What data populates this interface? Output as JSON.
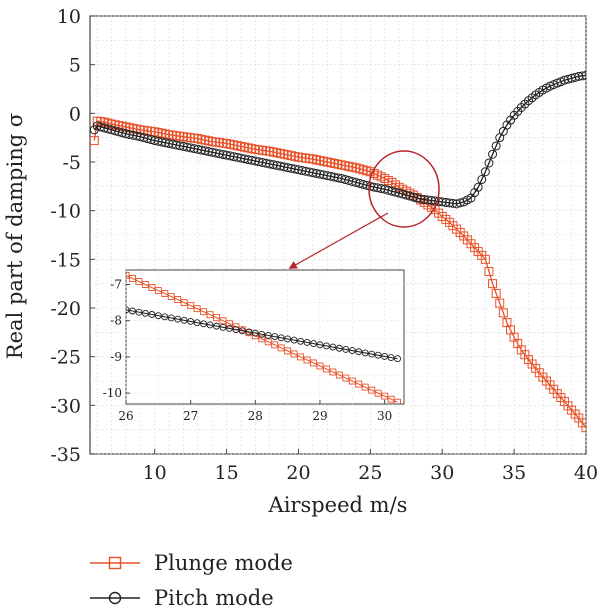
{
  "chart_data": {
    "type": "line",
    "xlabel": "Airspeed m/s",
    "ylabel": "Real part of damping σ",
    "xlim": [
      5.5,
      40
    ],
    "ylim": [
      -35,
      10
    ],
    "xticks": [
      10,
      15,
      20,
      25,
      30,
      35,
      40
    ],
    "yticks": [
      10,
      5,
      0,
      -5,
      -10,
      -15,
      -20,
      -25,
      -30,
      -35
    ],
    "grid": true,
    "legend_position": "bottom-left, below plot",
    "series": [
      {
        "name": "Plunge mode",
        "color": "#e8522a",
        "marker": "square",
        "x": [
          5.8,
          6.0,
          6.5,
          7,
          8,
          9,
          10,
          11,
          12,
          13,
          14,
          15,
          16,
          17,
          18,
          19,
          20,
          21,
          22,
          23,
          24,
          25,
          26,
          26.5,
          27,
          27.5,
          28,
          28.5,
          29,
          29.5,
          30,
          30.5,
          31,
          31.5,
          32,
          32.5,
          33,
          33.5,
          34,
          34.5,
          35,
          35.5,
          36,
          36.5,
          37,
          37.5,
          38,
          38.5,
          39,
          39.5,
          40
        ],
        "y": [
          -2.8,
          -0.8,
          -0.9,
          -1.1,
          -1.4,
          -1.7,
          -1.9,
          -2.2,
          -2.4,
          -2.6,
          -2.9,
          -3.1,
          -3.4,
          -3.7,
          -3.9,
          -4.2,
          -4.5,
          -4.7,
          -5.0,
          -5.3,
          -5.6,
          -6.0,
          -6.7,
          -7.1,
          -7.6,
          -8.0,
          -8.4,
          -8.9,
          -9.4,
          -9.9,
          -10.6,
          -11.2,
          -11.9,
          -12.6,
          -13.4,
          -14.2,
          -15.0,
          -17.5,
          -19.5,
          -21.5,
          -23.0,
          -24.3,
          -25.3,
          -26.2,
          -27.1,
          -27.9,
          -28.8,
          -29.6,
          -30.5,
          -31.3,
          -32.3
        ]
      },
      {
        "name": "Pitch mode",
        "color": "#222222",
        "marker": "circle",
        "x": [
          5.8,
          6.0,
          6.5,
          7,
          8,
          9,
          10,
          11,
          12,
          13,
          14,
          15,
          16,
          17,
          18,
          19,
          20,
          21,
          22,
          23,
          24,
          25,
          26,
          26.5,
          27,
          27.5,
          28,
          28.5,
          29,
          29.5,
          30,
          30.5,
          31,
          31.5,
          32,
          32.5,
          33,
          33.5,
          34,
          34.5,
          35,
          35.5,
          36,
          36.5,
          37,
          37.5,
          38,
          38.5,
          39,
          39.5,
          40
        ],
        "y": [
          -1.7,
          -1.3,
          -1.5,
          -1.7,
          -2.1,
          -2.4,
          -2.8,
          -3.1,
          -3.4,
          -3.7,
          -4.0,
          -4.3,
          -4.6,
          -4.9,
          -5.2,
          -5.5,
          -5.8,
          -6.1,
          -6.4,
          -6.7,
          -7.1,
          -7.5,
          -7.8,
          -8.0,
          -8.2,
          -8.4,
          -8.6,
          -8.8,
          -8.9,
          -9.0,
          -9.1,
          -9.2,
          -9.3,
          -9.1,
          -8.7,
          -7.6,
          -6.0,
          -4.2,
          -2.5,
          -1.2,
          -0.2,
          0.6,
          1.3,
          1.9,
          2.4,
          2.8,
          3.1,
          3.4,
          3.6,
          3.8,
          3.9
        ]
      }
    ],
    "annotations": [
      {
        "type": "ellipse",
        "center": [
          28.5,
          -8.5
        ]
      },
      {
        "type": "arrow",
        "from": [
          28.5,
          -8.5
        ],
        "to": [
          24.5,
          -15.3
        ]
      }
    ],
    "inset": {
      "xlim": [
        26,
        30.3
      ],
      "ylim": [
        -10.3,
        -6.6
      ],
      "xticks": [
        26,
        27,
        28,
        29,
        30
      ],
      "yticks": [
        -7,
        -8,
        -9,
        -10
      ],
      "series": [
        {
          "name": "Plunge mode",
          "x": [
            26,
            30.2
          ],
          "y": [
            -6.75,
            -10.25
          ]
        },
        {
          "name": "Pitch mode",
          "x": [
            26,
            30.2
          ],
          "y": [
            -7.7,
            -9.05
          ]
        }
      ]
    }
  }
}
